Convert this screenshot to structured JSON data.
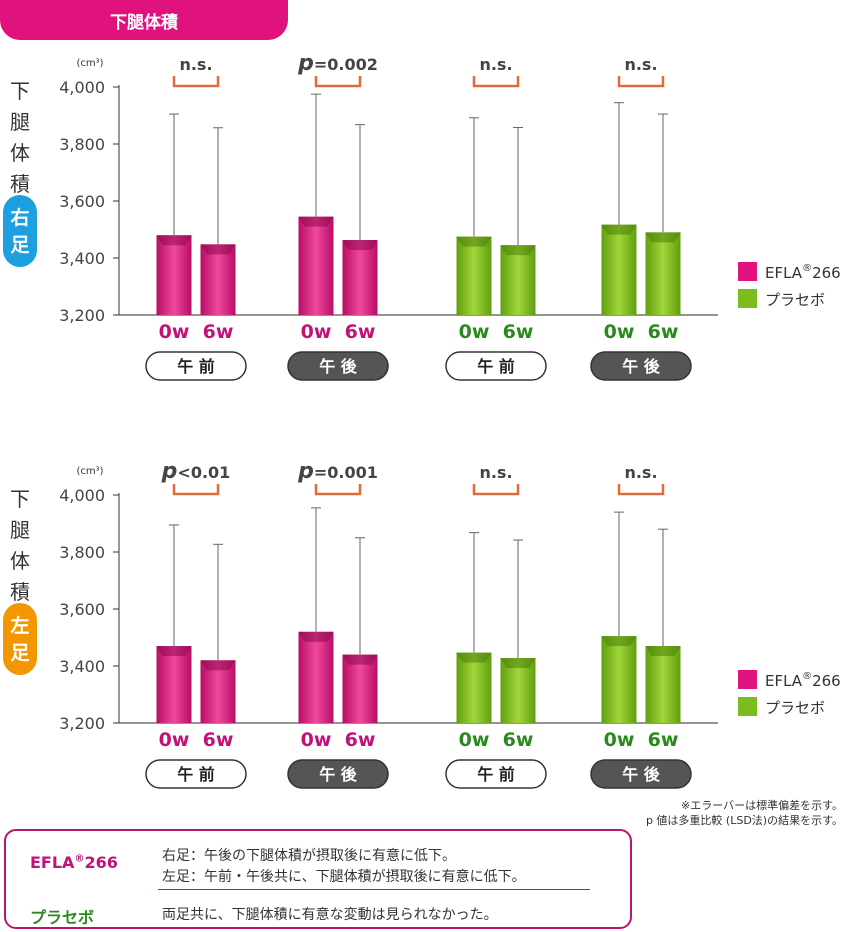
{
  "title": "下腿体積",
  "colors": {
    "efla": "#e0127e",
    "placebo": "#7cbd1e",
    "bracket": "#e36b3b",
    "right_badge": "#1e9fe0",
    "left_badge": "#f39700"
  },
  "legend": [
    {
      "name": "EFLA",
      "sup": "®",
      "suffix": "266",
      "color": "#e0127e"
    },
    {
      "name": "プラセボ",
      "sup": "",
      "suffix": "",
      "color": "#7cbd1e"
    }
  ],
  "time_labels": [
    "0w",
    "6w"
  ],
  "session_labels": [
    "午 前",
    "午 後",
    "午 前",
    "午 後"
  ],
  "chart_data": [
    {
      "type": "bar",
      "side_label": [
        "下",
        "腿",
        "体",
        "積"
      ],
      "badge": [
        "右",
        "足"
      ],
      "unit": "(cm³)",
      "ylim": [
        3200,
        4000
      ],
      "yticks": [
        "4,000",
        "3,800",
        "3,600",
        "3,400",
        "3,200"
      ],
      "groups": [
        {
          "session": "午前",
          "series": "EFLA®266",
          "values": [
            3480,
            3448
          ],
          "err_top": [
            3905,
            3857
          ],
          "sig": "n.s."
        },
        {
          "session": "午後",
          "series": "EFLA®266",
          "values": [
            3545,
            3463
          ],
          "err_top": [
            3975,
            3868
          ],
          "sig": "p=0.002"
        },
        {
          "session": "午前",
          "series": "プラセボ",
          "values": [
            3475,
            3445
          ],
          "err_top": [
            3892,
            3858
          ],
          "sig": "n.s."
        },
        {
          "session": "午後",
          "series": "プラセボ",
          "values": [
            3517,
            3490
          ],
          "err_top": [
            3945,
            3905
          ],
          "sig": "n.s."
        }
      ]
    },
    {
      "type": "bar",
      "side_label": [
        "下",
        "腿",
        "体",
        "積"
      ],
      "badge": [
        "左",
        "足"
      ],
      "unit": "(cm³)",
      "ylim": [
        3200,
        4000
      ],
      "yticks": [
        "4,000",
        "3,800",
        "3,600",
        "3,400",
        "3,200"
      ],
      "groups": [
        {
          "session": "午前",
          "series": "EFLA®266",
          "values": [
            3470,
            3420
          ],
          "err_top": [
            3895,
            3827
          ],
          "sig": "p<0.01"
        },
        {
          "session": "午後",
          "series": "EFLA®266",
          "values": [
            3520,
            3440
          ],
          "err_top": [
            3955,
            3850
          ],
          "sig": "p=0.001"
        },
        {
          "session": "午前",
          "series": "プラセボ",
          "values": [
            3447,
            3428
          ],
          "err_top": [
            3868,
            3842
          ],
          "sig": "n.s."
        },
        {
          "session": "午後",
          "series": "プラセボ",
          "values": [
            3505,
            3470
          ],
          "err_top": [
            3940,
            3880
          ],
          "sig": "n.s."
        }
      ]
    }
  ],
  "notes": [
    "※エラーバーは標準偏差を示す。",
    "p 値は多重比較 (LSD法)の結果を示す。"
  ],
  "summary": {
    "efla_label": "EFLA",
    "efla_sup": "®",
    "efla_suffix": "266",
    "efla_line1": "右足：午後の下腿体積が摂取後に有意に低下。",
    "efla_line2": "左足：午前・午後共に、下腿体積が摂取後に有意に低下。",
    "placebo_label": "プラセボ",
    "placebo_line": "両足共に、下腿体積に有意な変動は見られなかった。"
  }
}
